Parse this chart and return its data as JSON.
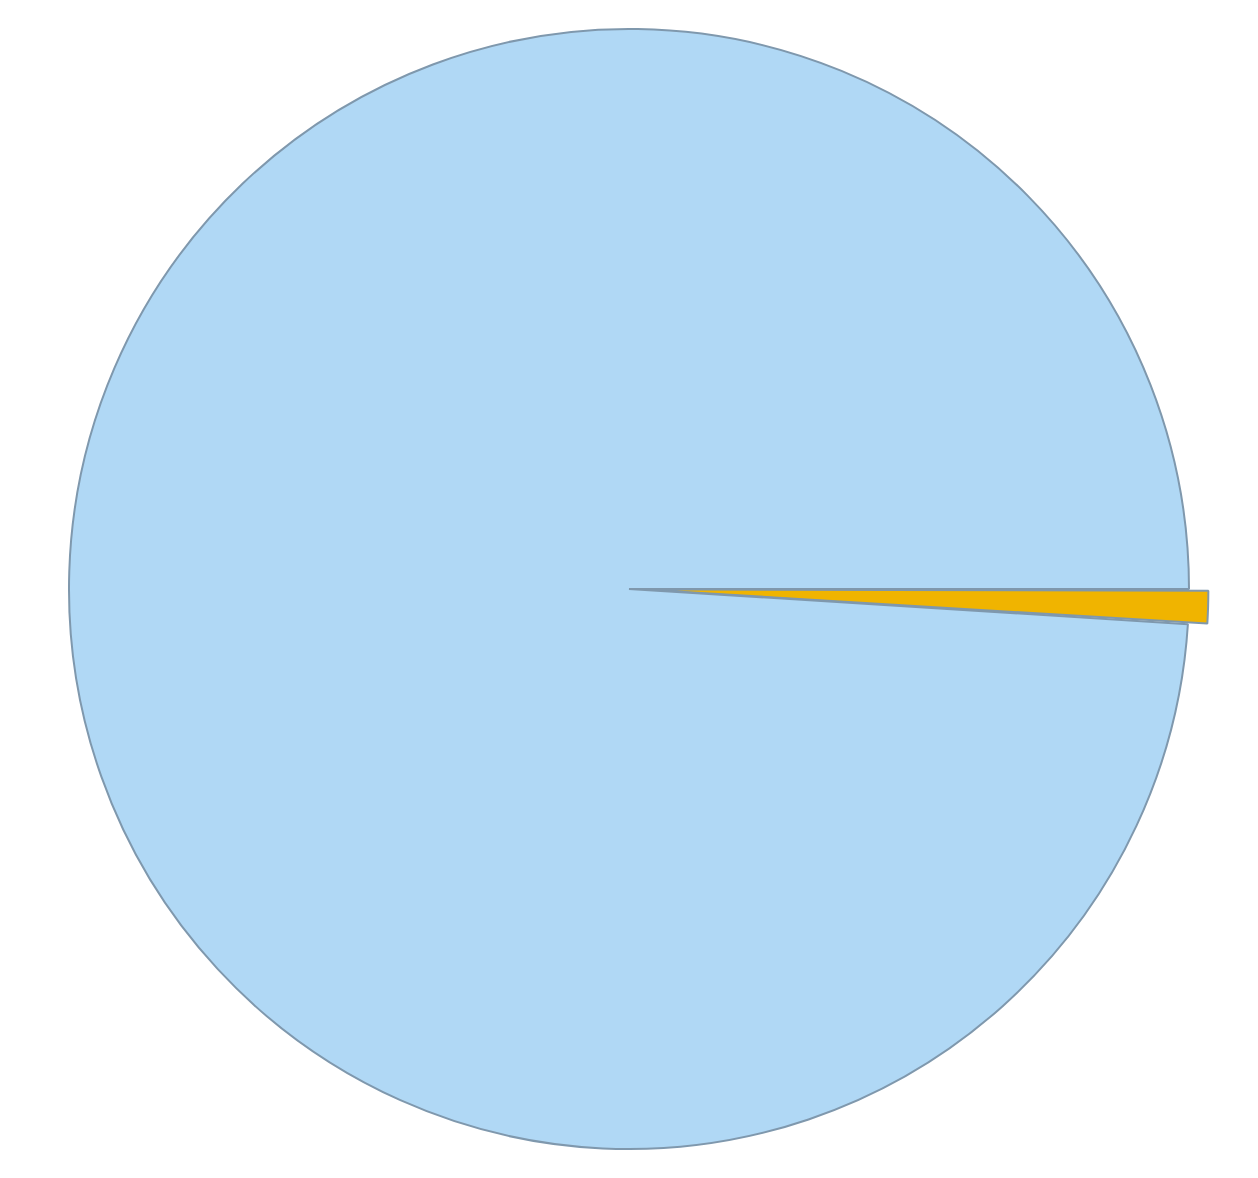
{
  "chart_data": {
    "type": "pie",
    "categories": [
      null,
      null
    ],
    "values": [
      1,
      99
    ],
    "colors": [
      "#f0b400",
      "#b0d8f5"
    ],
    "legend": false
  }
}
